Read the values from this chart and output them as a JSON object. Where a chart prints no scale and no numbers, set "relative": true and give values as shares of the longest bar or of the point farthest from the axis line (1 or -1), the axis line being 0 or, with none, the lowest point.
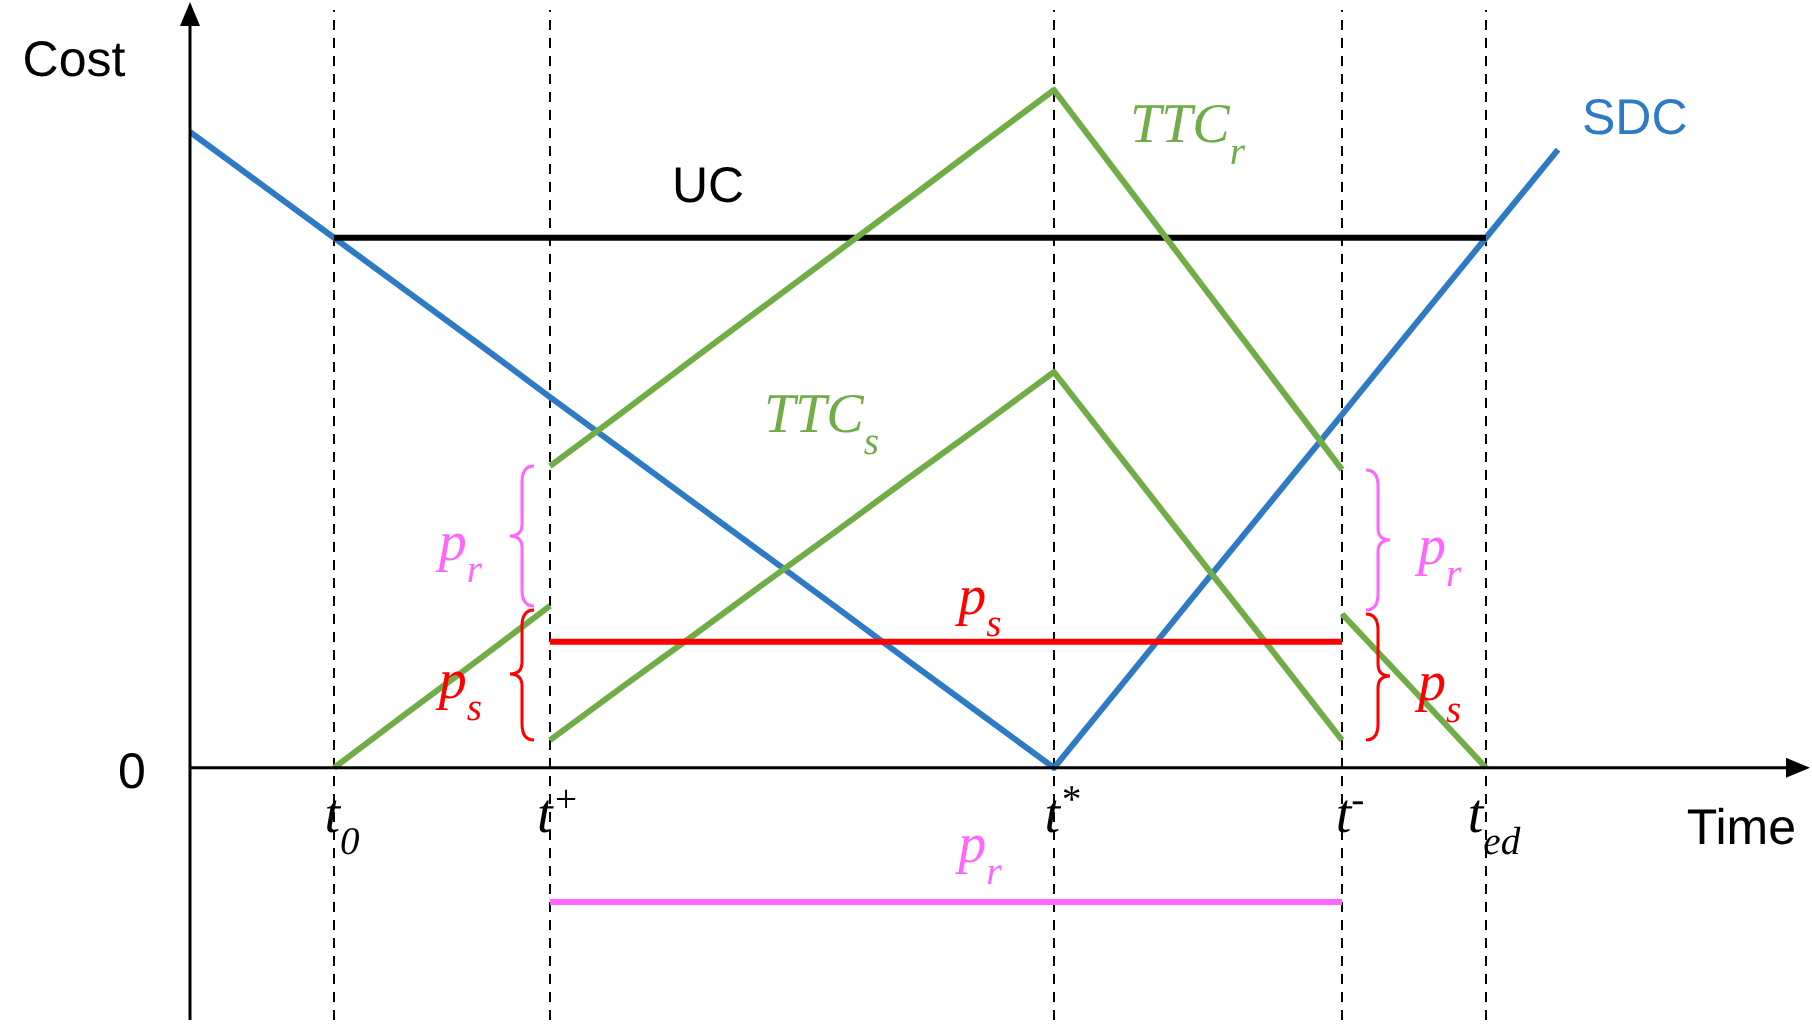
{
  "chart_data": {
    "type": "line",
    "relative": true,
    "xlabel": "Time",
    "ylabel": "Cost",
    "categories": [
      null,
      null,
      "t$_{0}$",
      null,
      null,
      "t$^{+}$",
      null,
      null,
      null,
      null,
      null,
      null,
      "t$^{*}$",
      null,
      null,
      null,
      "t$^{-}$",
      null,
      "t$_{ed}$",
      null,
      null,
      null,
      null
    ],
    "series": [
      {
        "name": "SDC",
        "color": "#2f7ac4",
        "values": [
          0.938,
          0.86,
          0.782,
          0.704,
          0.626,
          0.547,
          0.469,
          0.391,
          0.313,
          0.235,
          0.156,
          0.078,
          0,
          0.13,
          0.261,
          0.391,
          0.521,
          0.652,
          0.782,
          0.912,
          null,
          null,
          null
        ]
      },
      {
        "name": "UC",
        "color": "#000000",
        "values": [
          null,
          null,
          0.782,
          0.782,
          0.782,
          0.782,
          0.782,
          0.782,
          0.782,
          0.782,
          0.782,
          0.782,
          0.782,
          0.782,
          0.782,
          0.782,
          0.782,
          0.782,
          0.782,
          null,
          null,
          null,
          null
        ]
      },
      {
        "name": "TTC$_{r}$",
        "color": "#70ad47",
        "values": [
          null,
          null,
          null,
          null,
          null,
          0.445,
          0.524,
          0.604,
          0.683,
          0.762,
          0.841,
          0.921,
          1,
          0.86,
          0.72,
          0.58,
          0.44,
          null,
          null,
          null,
          null,
          null,
          null
        ]
      },
      {
        "name": "TTC$_{s}$",
        "color": "#70ad47",
        "values": [
          null,
          null,
          null,
          null,
          null,
          0.041,
          0.119,
          0.196,
          0.274,
          0.351,
          0.429,
          0.506,
          0.584,
          0.448,
          0.312,
          0.177,
          0.041,
          null,
          null,
          null,
          null,
          null,
          null
        ]
      },
      {
        "color": "#70ad47",
        "values": [
          null,
          null,
          0,
          0.08,
          0.159,
          0.239,
          null,
          null,
          null,
          null,
          null,
          null,
          null,
          null,
          null,
          null,
          null,
          null,
          null,
          null,
          null,
          null,
          null
        ]
      },
      {
        "color": "#70ad47",
        "values": [
          null,
          null,
          null,
          null,
          null,
          null,
          null,
          null,
          null,
          null,
          null,
          null,
          null,
          null,
          null,
          null,
          0.227,
          0.114,
          0,
          null,
          null,
          null,
          null
        ]
      },
      {
        "name": "p$_{s}$",
        "color": "#ff0000",
        "values": [
          null,
          null,
          null,
          null,
          null,
          0.186,
          0.186,
          0.186,
          0.186,
          0.186,
          0.186,
          0.186,
          0.186,
          0.186,
          0.186,
          0.186,
          0.186,
          null,
          null,
          null,
          null,
          null,
          null
        ]
      },
      {
        "name": "p$_{r}$",
        "color": "#ff66ff",
        "values": [
          null,
          null,
          null,
          null,
          null,
          -0.198,
          -0.198,
          -0.198,
          -0.198,
          -0.198,
          -0.198,
          -0.198,
          -0.198,
          -0.198,
          -0.198,
          -0.198,
          -0.198,
          null,
          null,
          null,
          null,
          null,
          null
        ]
      }
    ],
    "ref_lines": [
      {
        "axis": "x",
        "value": "t$_{0}$",
        "color": "#000000",
        "line_style": "dashed"
      },
      {
        "axis": "x",
        "value": "t$^{+}$",
        "color": "#000000",
        "line_style": "dashed"
      },
      {
        "axis": "x",
        "value": "t$^{*}$",
        "color": "#000000",
        "line_style": "dashed"
      },
      {
        "axis": "x",
        "value": "t$^{-}$",
        "color": "#000000",
        "line_style": "dashed"
      },
      {
        "axis": "x",
        "value": "t$_{ed}$",
        "color": "#000000",
        "line_style": "dashed"
      }
    ],
    "annotations": [
      "0",
      "p$_{r}$",
      "p$_{s}$",
      "p$_{r}$",
      "p$_{s}$"
    ]
  }
}
